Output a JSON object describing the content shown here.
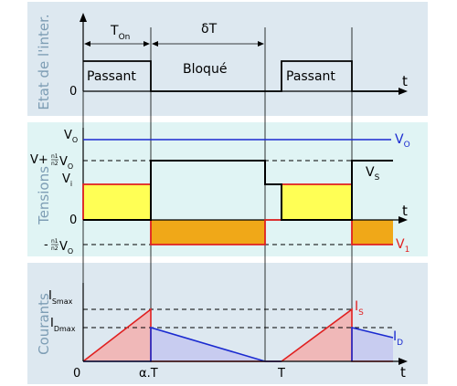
{
  "panels": {
    "state_label": "Etat de l'inter.",
    "voltage_label": "Tensions",
    "current_label": "Courants"
  },
  "timing": {
    "t_on": "T",
    "t_on_sub": "On",
    "delta_t": "δT",
    "t_axis": "t"
  },
  "states": {
    "on": "Passant",
    "off": "Bloqué",
    "zero": "0"
  },
  "voltages": {
    "vo": "V",
    "vo_sub": "O",
    "vplus_a": "V",
    "vplus_b": "+",
    "ratio_num": "n1",
    "ratio_den": "n2",
    "vi": "V",
    "vi_sub": "i",
    "zero": "0",
    "vminus": "-",
    "vs_label": "V",
    "vs_sub": "S",
    "v1_label": "V",
    "v1_sub": "1",
    "vo_right": "V",
    "vo_right_sub": "O"
  },
  "currents": {
    "ismax": "I",
    "ismax_sub": "Smax",
    "idmax": "I",
    "idmax_sub": "Dmax",
    "is_label": "I",
    "is_sub": "S",
    "id_label": "I",
    "id_sub": "D",
    "tick_0": "0",
    "tick_aT": "α.T",
    "tick_T": "T"
  },
  "colors": {
    "panel_bg": "#dde8f0",
    "voltage_bg": "#e0f4f4",
    "yellow": "#ffff55",
    "orange": "#f0a818",
    "red": "#e02020",
    "blue": "#1a2ad0",
    "pink": "#f0b8b8",
    "lavender": "#c8ccf0"
  }
}
